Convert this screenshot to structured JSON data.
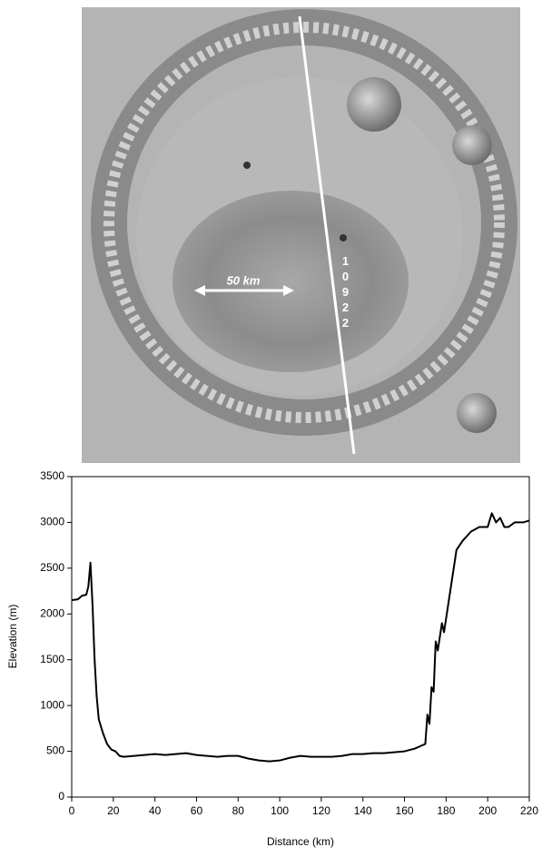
{
  "image": {
    "scale_label": "50 km",
    "track_label": "10922"
  },
  "chart_data": {
    "type": "line",
    "xlabel": "Distance (km)",
    "ylabel": "Elevation (m)",
    "xlim": [
      0,
      220
    ],
    "xticks": [
      0,
      20,
      40,
      60,
      80,
      100,
      120,
      140,
      160,
      180,
      200,
      220
    ],
    "ylim": [
      0,
      3500
    ],
    "yticks": [
      0,
      500,
      1000,
      1500,
      2000,
      2500,
      3000,
      3500
    ],
    "series": [
      {
        "color": "#000000",
        "x": [
          0,
          3,
          5,
          7,
          8,
          9,
          10,
          11,
          12,
          13,
          15,
          17,
          19,
          21,
          23,
          25,
          30,
          35,
          40,
          45,
          50,
          55,
          60,
          65,
          70,
          75,
          80,
          85,
          90,
          95,
          100,
          105,
          110,
          115,
          120,
          125,
          130,
          135,
          140,
          145,
          150,
          155,
          160,
          165,
          168,
          170,
          171,
          172,
          173,
          174,
          175,
          176,
          178,
          179,
          181,
          183,
          185,
          188,
          192,
          196,
          200,
          202,
          204,
          206,
          208,
          210,
          213,
          217,
          220
        ],
        "values": [
          2150,
          2160,
          2200,
          2210,
          2300,
          2560,
          2100,
          1500,
          1100,
          850,
          700,
          580,
          520,
          500,
          450,
          440,
          450,
          460,
          470,
          460,
          470,
          480,
          460,
          450,
          440,
          450,
          450,
          420,
          400,
          390,
          400,
          430,
          450,
          440,
          440,
          440,
          450,
          470,
          470,
          480,
          480,
          490,
          500,
          530,
          560,
          580,
          900,
          800,
          1200,
          1150,
          1700,
          1600,
          1900,
          1800,
          2100,
          2400,
          2700,
          2800,
          2900,
          2950,
          2950,
          3100,
          3000,
          3050,
          2950,
          2950,
          3000,
          3000,
          3020
        ]
      }
    ]
  }
}
